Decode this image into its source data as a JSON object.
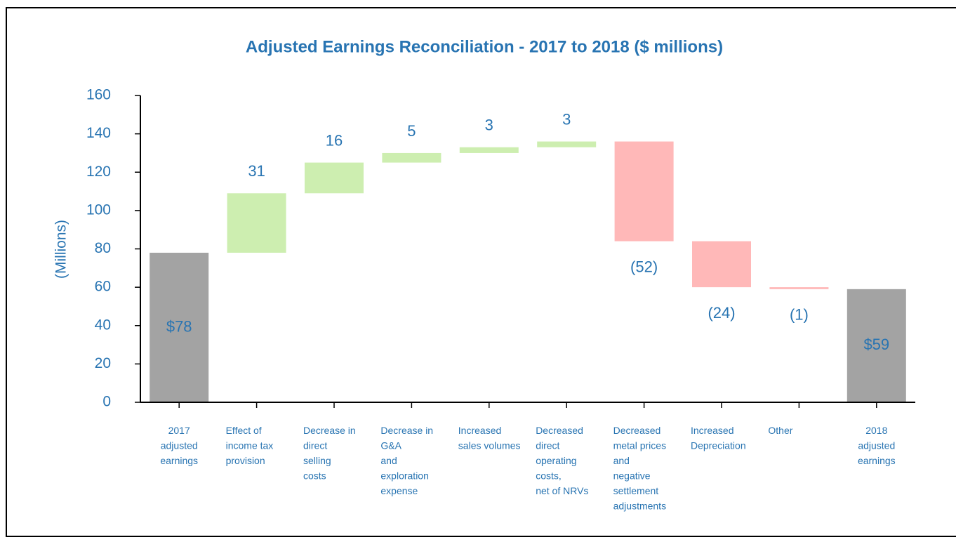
{
  "chart_data": {
    "type": "waterfall",
    "title": "Adjusted Earnings Reconciliation -  2017 to 2018 ($ millions)",
    "y_label": "(Millions)",
    "categories": [
      [
        "2017",
        "adjusted",
        "earnings"
      ],
      [
        "Effect of",
        "income tax",
        "provision"
      ],
      [
        "Decrease in",
        "direct",
        "selling",
        "costs"
      ],
      [
        "Decrease in",
        "G&A",
        "and",
        "exploration",
        "expense"
      ],
      [
        "Increased",
        "sales volumes"
      ],
      [
        "Decreased",
        "direct",
        "operating",
        "costs,",
        "net of NRVs"
      ],
      [
        "Decreased",
        "metal prices",
        "and",
        "negative",
        "settlement",
        "adjustments"
      ],
      [
        "Increased",
        "Depreciation"
      ],
      [
        "Other"
      ],
      [
        "2018",
        "adjusted",
        "earnings"
      ]
    ],
    "measure": [
      "total",
      "relative",
      "relative",
      "relative",
      "relative",
      "relative",
      "relative",
      "relative",
      "relative",
      "total"
    ],
    "values": [
      78,
      31,
      16,
      5,
      3,
      3,
      -52,
      -24,
      -1,
      59
    ],
    "value_labels": [
      "$78",
      "31",
      "16",
      "5",
      "3",
      "3",
      "(52)",
      "(24)",
      "(1)",
      "$59"
    ],
    "total_color": "#a3a3a3",
    "increase_color": "#cdeeb0",
    "decrease_color": "#ffb8b8",
    "ylim": [
      0,
      160
    ],
    "yticks": [
      0,
      20,
      40,
      60,
      80,
      100,
      120,
      140,
      160
    ]
  }
}
